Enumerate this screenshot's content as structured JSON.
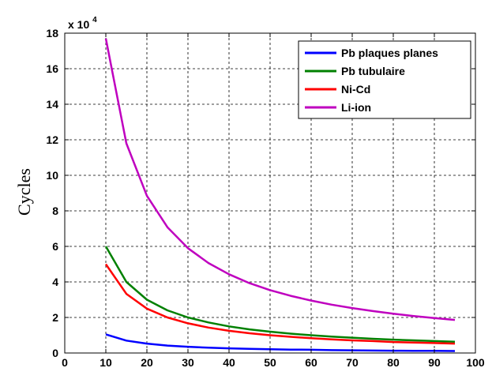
{
  "chart_data": {
    "type": "line",
    "title": "",
    "xlabel": "",
    "ylabel": "Cycles",
    "y_multiplier": {
      "base": "x 10",
      "exponent": "4"
    },
    "xlim": [
      0,
      100
    ],
    "ylim": [
      0,
      18
    ],
    "xticks": [
      "0",
      "10",
      "20",
      "30",
      "40",
      "50",
      "60",
      "70",
      "80",
      "90",
      "100"
    ],
    "yticks": [
      "0",
      "2",
      "4",
      "6",
      "8",
      "10",
      "12",
      "14",
      "16",
      "18"
    ],
    "grid": true,
    "legend_position": "top-right",
    "x": [
      10,
      15,
      20,
      25,
      30,
      35,
      40,
      45,
      50,
      55,
      60,
      65,
      70,
      75,
      80,
      85,
      90,
      95
    ],
    "series": [
      {
        "name": "Pb plaques planes",
        "color": "#0000ff",
        "values": [
          1.05,
          0.7,
          0.53,
          0.42,
          0.35,
          0.3,
          0.26,
          0.23,
          0.21,
          0.19,
          0.18,
          0.16,
          0.15,
          0.14,
          0.13,
          0.12,
          0.12,
          0.11
        ]
      },
      {
        "name": "Pb tubulaire",
        "color": "#008000",
        "values": [
          6.0,
          4.0,
          3.0,
          2.4,
          2.0,
          1.72,
          1.5,
          1.33,
          1.2,
          1.09,
          1.0,
          0.92,
          0.86,
          0.8,
          0.75,
          0.71,
          0.67,
          0.63
        ]
      },
      {
        "name": "Ni-Cd",
        "color": "#ff0000",
        "values": [
          5.0,
          3.33,
          2.5,
          2.0,
          1.67,
          1.43,
          1.25,
          1.11,
          1.0,
          0.91,
          0.83,
          0.77,
          0.71,
          0.67,
          0.62,
          0.59,
          0.56,
          0.53
        ]
      },
      {
        "name": "Li-ion",
        "color": "#bf00bf",
        "values": [
          17.7,
          11.8,
          8.85,
          7.08,
          5.9,
          5.06,
          4.43,
          3.93,
          3.54,
          3.22,
          2.95,
          2.72,
          2.53,
          2.36,
          2.21,
          2.08,
          1.97,
          1.86
        ]
      }
    ]
  }
}
